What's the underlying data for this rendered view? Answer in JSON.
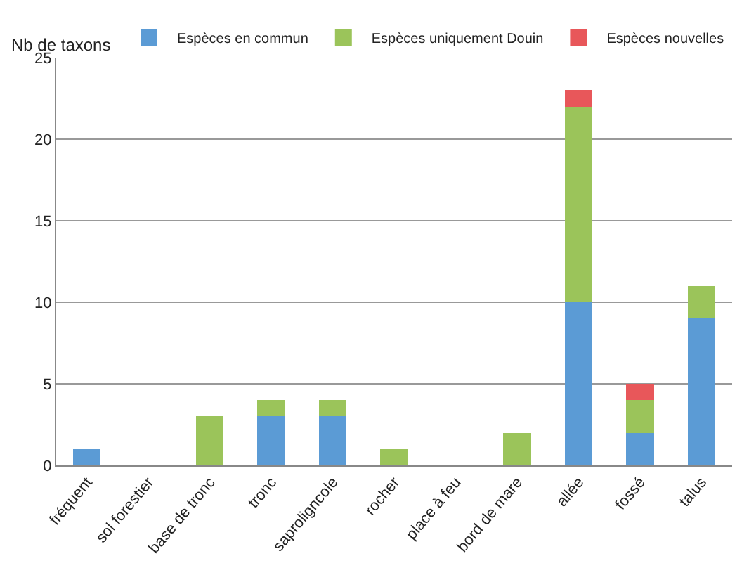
{
  "chart_data": {
    "type": "bar",
    "stacked": true,
    "ylabel": "Nb de taxons",
    "categories": [
      "fréquent",
      "sol forestier",
      "base de tronc",
      "tronc",
      "saproligncole",
      "rocher",
      "place à feu",
      "bord de mare",
      "allée",
      "fossé",
      "talus"
    ],
    "series": [
      {
        "name": "Espèces en commun",
        "color": "#5b9bd5",
        "values": [
          1,
          0,
          0,
          3,
          3,
          0,
          0,
          0,
          10,
          2,
          9
        ]
      },
      {
        "name": "Espèces uniquement Douin",
        "color": "#9bc45a",
        "values": [
          0,
          0,
          3,
          1,
          1,
          1,
          0,
          2,
          12,
          2,
          2
        ]
      },
      {
        "name": "Espèces nouvelles",
        "color": "#e8575a",
        "values": [
          0,
          0,
          0,
          0,
          0,
          0,
          0,
          0,
          1,
          1,
          0
        ]
      }
    ],
    "ylim": [
      0,
      25
    ],
    "yticks": [
      0,
      5,
      10,
      15,
      20,
      25
    ],
    "grid": "y",
    "legend": "top right"
  }
}
